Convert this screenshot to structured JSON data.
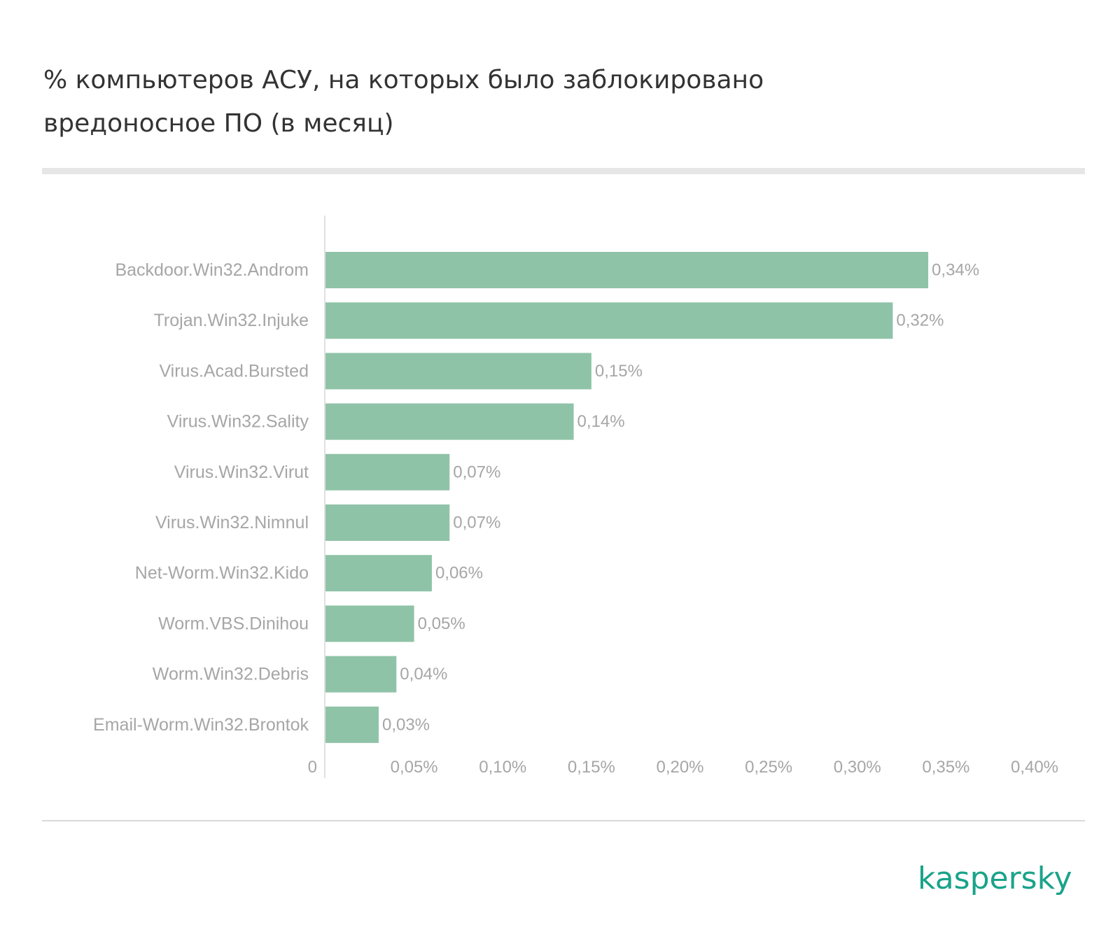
{
  "chart_data": {
    "type": "bar",
    "orientation": "horizontal",
    "title_lines": [
      "% компьютеров АСУ, на которых было заблокировано",
      "вредоносное ПО (в месяц)"
    ],
    "categories": [
      "Backdoor.Win32.Androm",
      "Trojan.Win32.Injuke",
      "Virus.Acad.Bursted",
      "Virus.Win32.Sality",
      "Virus.Win32.Virut",
      "Virus.Win32.Nimnul",
      "Net-Worm.Win32.Kido",
      "Worm.VBS.Dinihou",
      "Worm.Win32.Debris",
      "Email-Worm.Win32.Brontok"
    ],
    "values": [
      0.34,
      0.32,
      0.15,
      0.14,
      0.07,
      0.07,
      0.06,
      0.05,
      0.04,
      0.03
    ],
    "value_labels": [
      "0,34%",
      "0,32%",
      "0,15%",
      "0,14%",
      "0,07%",
      "0,07%",
      "0,06%",
      "0,05%",
      "0,04%",
      "0,03%"
    ],
    "xlim": [
      0,
      0.4
    ],
    "x_ticks": [
      0,
      0.05,
      0.1,
      0.15,
      0.2,
      0.25,
      0.3,
      0.35,
      0.4
    ],
    "x_tick_labels": [
      "0",
      "0,05%",
      "0,10%",
      "0,15%",
      "0,20%",
      "0,25%",
      "0,30%",
      "0,35%",
      "0,40%"
    ],
    "grid": false,
    "bar_color": "#8fc3a8"
  },
  "brand": {
    "logo_text": "kaspersky",
    "color": "#1aa38a"
  }
}
